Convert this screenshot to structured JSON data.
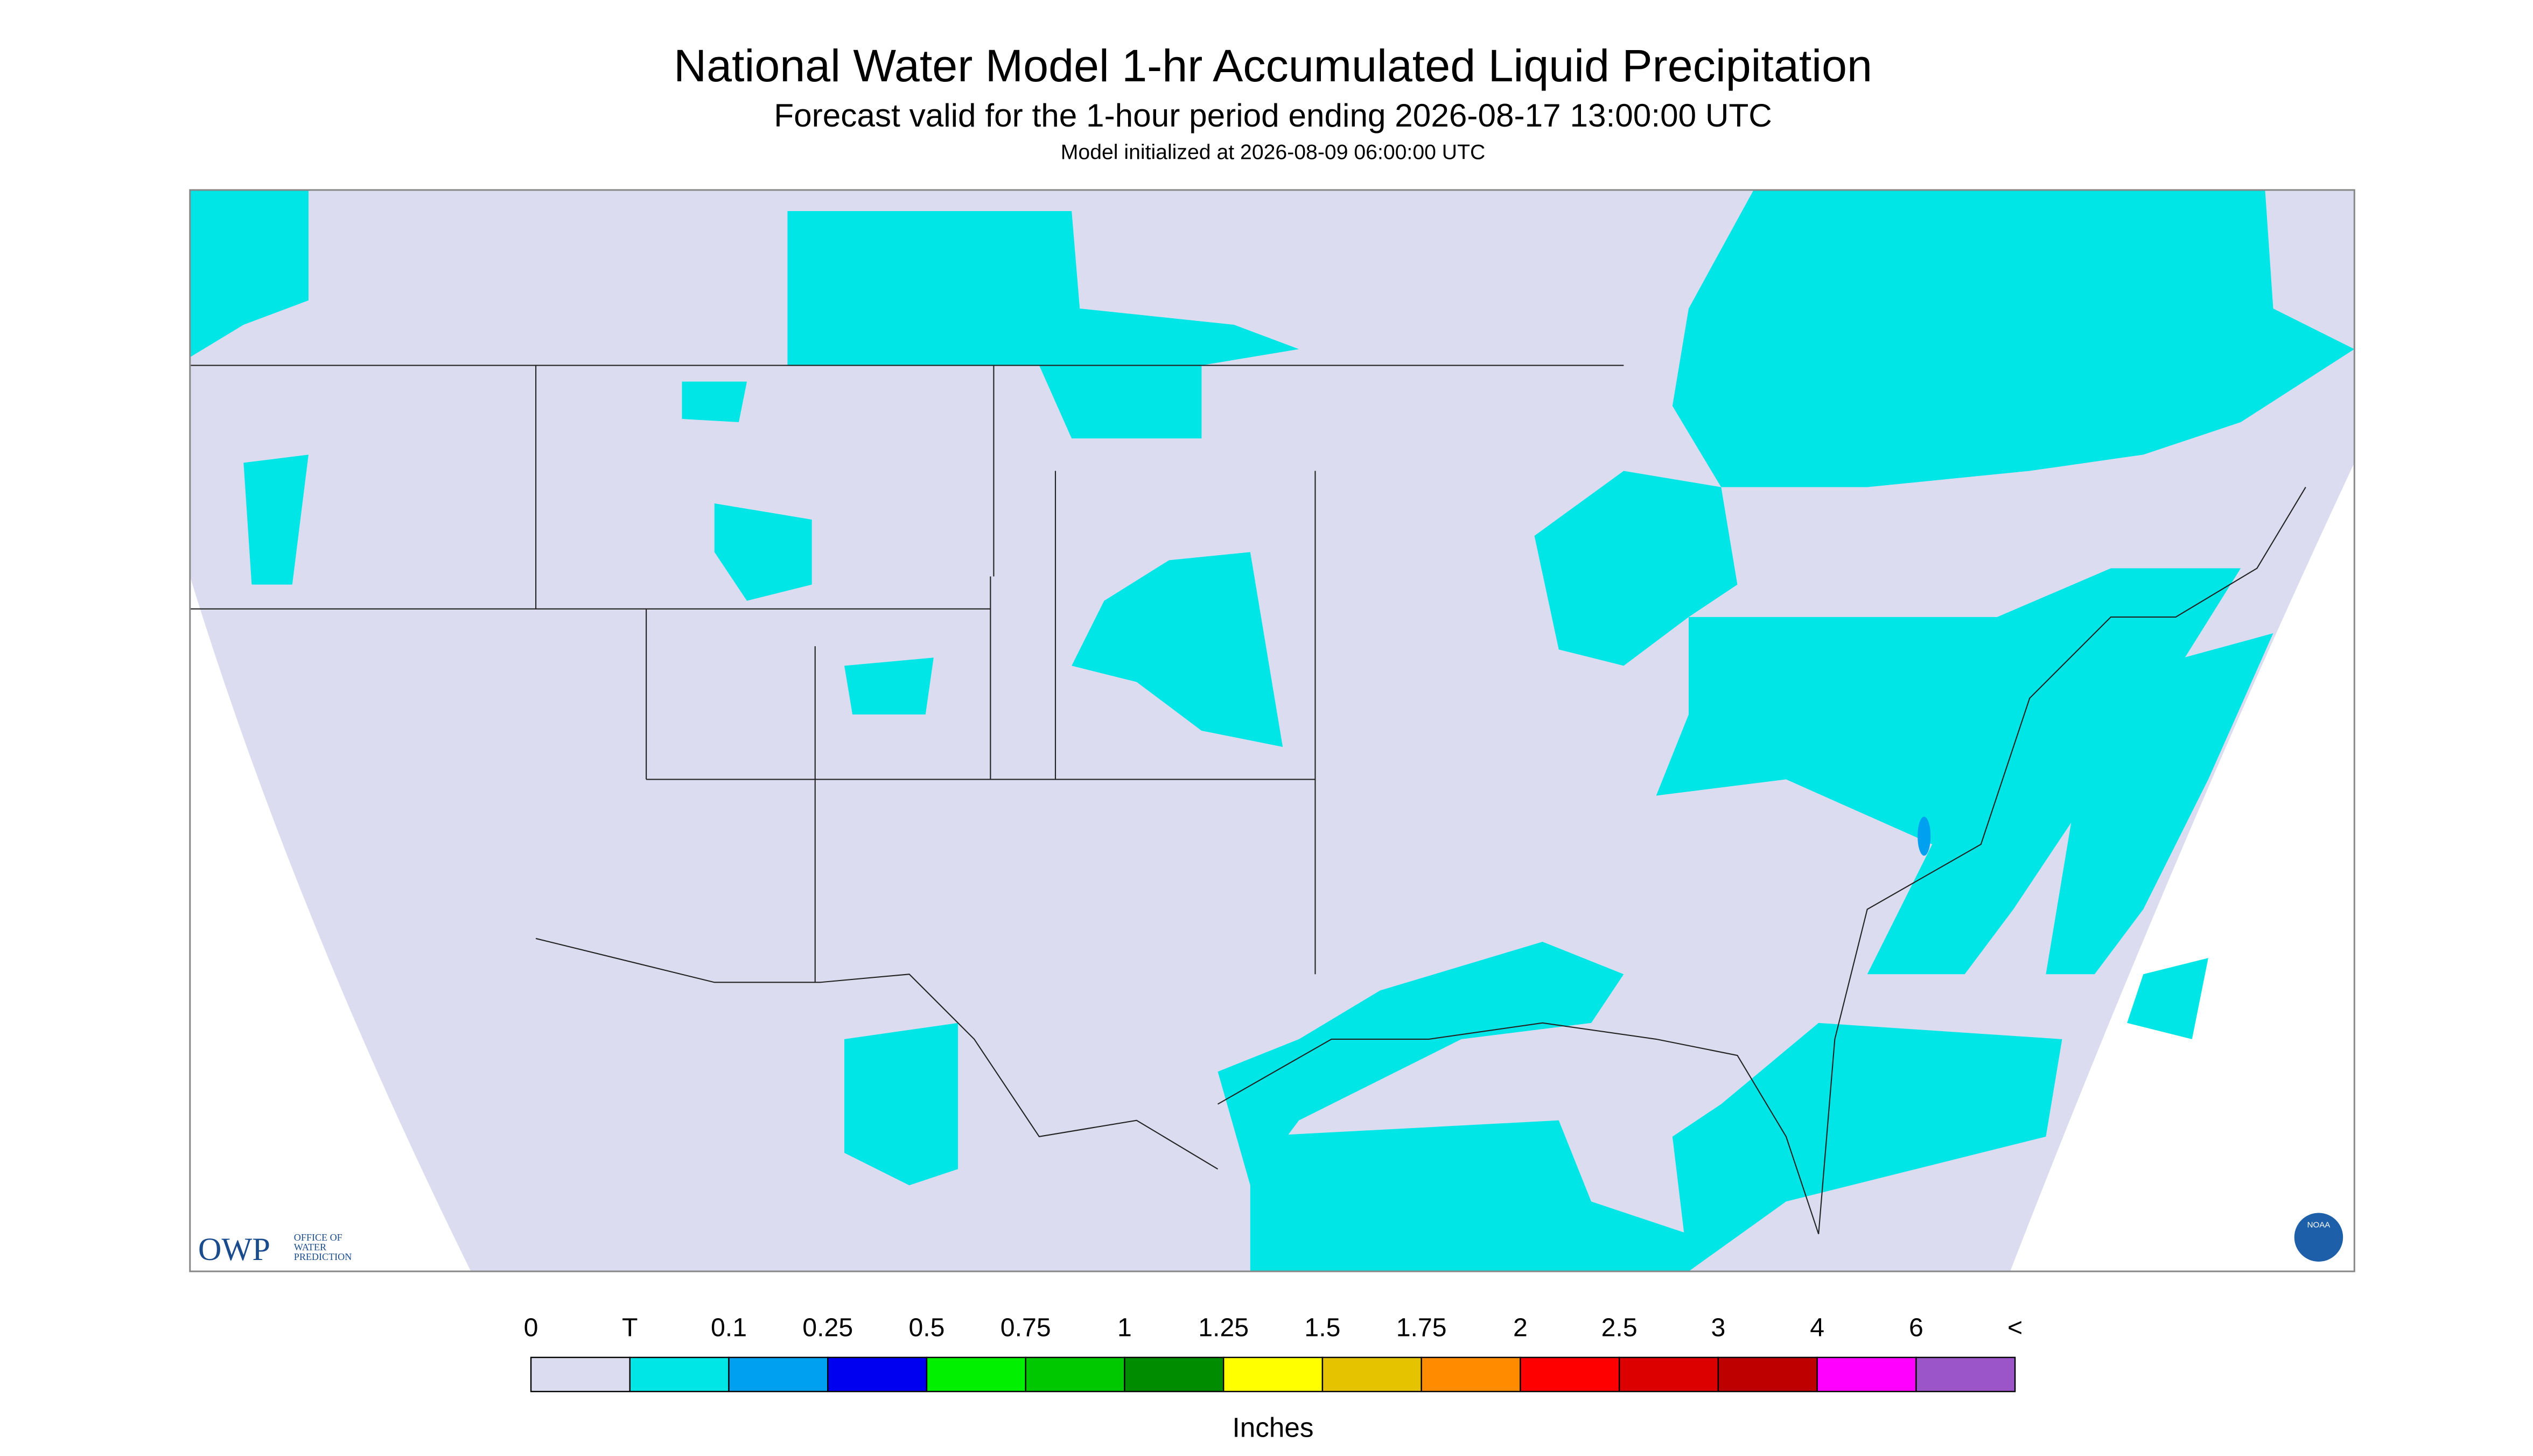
{
  "header": {
    "title": "National Water Model 1-hr Accumulated Liquid Precipitation",
    "subtitle": "Forecast valid for the 1-hour period ending 2026-08-17 13:00:00 UTC",
    "init": "Model initialized at 2026-08-09 06:00:00 UTC"
  },
  "legend": {
    "labels": [
      "0",
      "T",
      "0.1",
      "0.25",
      "0.5",
      "0.75",
      "1",
      "1.25",
      "1.5",
      "1.75",
      "2",
      "2.5",
      "3",
      "4",
      "6",
      "<"
    ],
    "colors": [
      "#dcdcf0",
      "#00e6e6",
      "#00a0f0",
      "#0000f0",
      "#00f000",
      "#00c800",
      "#008c00",
      "#ffff00",
      "#e6c300",
      "#ff8c00",
      "#ff0000",
      "#dc0000",
      "#be0000",
      "#ff00ff",
      "#9b55c8"
    ],
    "units": "Inches"
  },
  "logos": {
    "owp": "OWP",
    "owp_name": [
      "OFFICE OF",
      "WATER",
      "PREDICTION"
    ],
    "noaa": "NOAA"
  }
}
